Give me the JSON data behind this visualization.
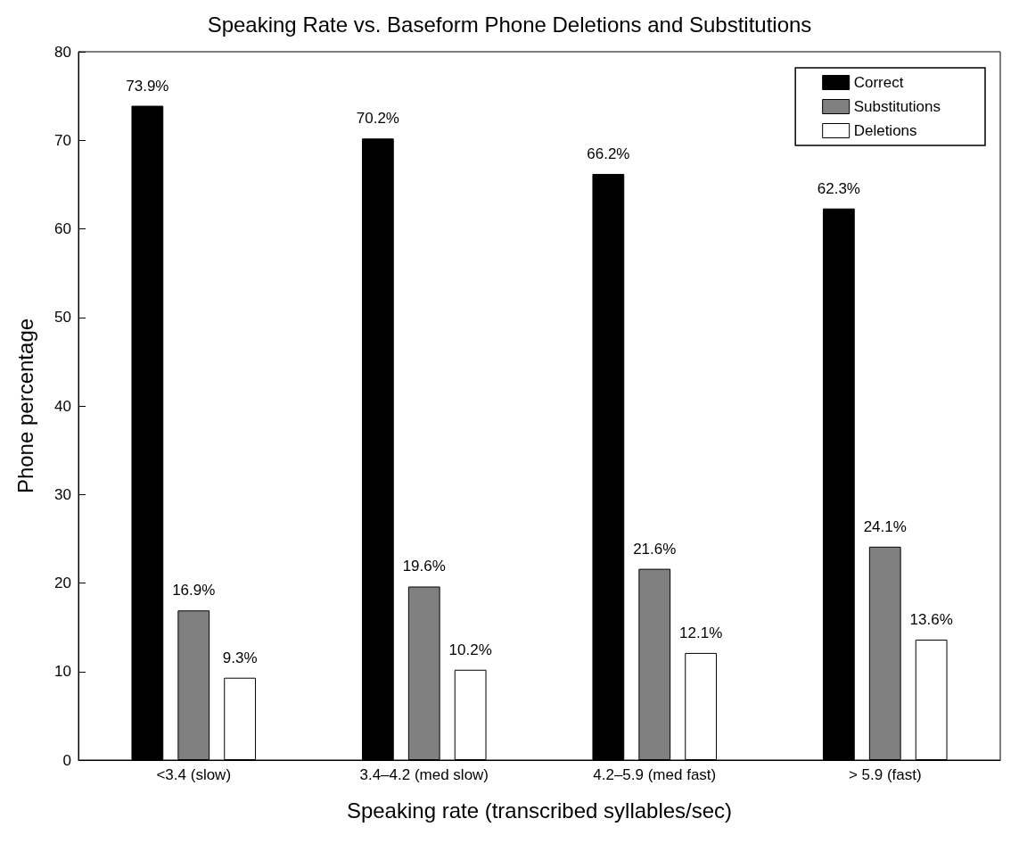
{
  "chart_data": {
    "type": "bar",
    "title": "Speaking Rate vs. Baseform Phone Deletions and Substitutions",
    "xlabel": "Speaking rate (transcribed syllables/sec)",
    "ylabel": "Phone percentage",
    "categories": [
      "<3.4 (slow)",
      "3.4–4.2 (med slow)",
      "4.2–5.9 (med fast)",
      "> 5.9 (fast)"
    ],
    "series": [
      {
        "name": "Correct",
        "color": "#000000",
        "values": [
          73.9,
          70.2,
          66.2,
          62.3
        ],
        "value_labels": [
          "73.9%",
          "70.2%",
          "66.2%",
          "62.3%"
        ]
      },
      {
        "name": "Substitutions",
        "color": "#808080",
        "values": [
          16.9,
          19.6,
          21.6,
          24.1
        ],
        "value_labels": [
          "16.9%",
          "19.6%",
          "21.6%",
          "24.1%"
        ]
      },
      {
        "name": "Deletions",
        "color": "#ffffff",
        "values": [
          9.3,
          10.2,
          12.1,
          13.6
        ],
        "value_labels": [
          "9.3%",
          "10.2%",
          "12.1%",
          "13.6%"
        ]
      }
    ],
    "ylim": [
      0,
      80
    ],
    "yticks": [
      0,
      10,
      20,
      30,
      40,
      50,
      60,
      70,
      80
    ],
    "grid": false,
    "legend": "top right"
  }
}
